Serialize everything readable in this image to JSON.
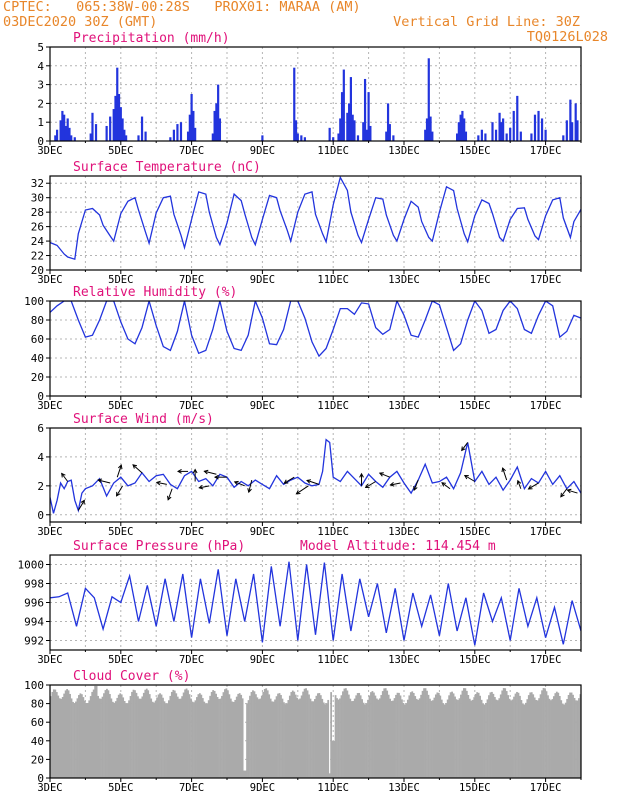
{
  "header": {
    "line1": "CPTEC:   065:38W-00:28S   PROX01: MARAA (AM)",
    "line2_left": "03DEC2020 30Z (GMT)",
    "line2_right": "Vertical Grid Line: 30Z",
    "line3_right": "TQ0126L028"
  },
  "colors": {
    "header": "#e8862a",
    "panel_title": "#e0117a",
    "series": "#2234dd",
    "cloud": "#aaaaaa",
    "grid": "#b4b4b4",
    "text": "#000000"
  },
  "x_ticks": [
    "3DEC",
    "5DEC",
    "7DEC",
    "9DEC",
    "11DEC",
    "13DEC",
    "15DEC",
    "17DEC"
  ],
  "chart_data": [
    {
      "type": "bar",
      "title": "Precipitation (mm/h)",
      "ylim": [
        0,
        5
      ],
      "yticks": [
        0,
        1,
        2,
        3,
        4,
        5
      ],
      "grid": true,
      "x": [
        3.15,
        3.2,
        3.3,
        3.35,
        3.4,
        3.45,
        3.5,
        3.55,
        3.6,
        3.7,
        4.15,
        4.2,
        4.3,
        4.6,
        4.7,
        4.8,
        4.85,
        4.9,
        4.95,
        5.0,
        5.05,
        5.1,
        5.15,
        5.5,
        5.6,
        5.7,
        6.4,
        6.5,
        6.6,
        6.7,
        6.9,
        6.95,
        7.0,
        7.05,
        7.1,
        7.6,
        7.65,
        7.7,
        7.75,
        7.8,
        9.0,
        9.9,
        9.95,
        10.0,
        10.1,
        10.2,
        10.9,
        11.0,
        11.15,
        11.2,
        11.25,
        11.3,
        11.4,
        11.45,
        11.5,
        11.55,
        11.6,
        11.7,
        11.85,
        11.9,
        11.95,
        12.0,
        12.05,
        12.5,
        12.55,
        12.6,
        12.7,
        13.6,
        13.65,
        13.7,
        13.75,
        13.8,
        14.5,
        14.55,
        14.6,
        14.65,
        14.7,
        14.75,
        15.1,
        15.2,
        15.3,
        15.5,
        15.6,
        15.7,
        15.75,
        15.8,
        15.9,
        16.0,
        16.1,
        16.2,
        16.3,
        16.6,
        16.7,
        16.8,
        16.9,
        17.0,
        17.5,
        17.6,
        17.7,
        17.75,
        17.85,
        17.9
      ],
      "values": [
        0.3,
        0.6,
        1.1,
        1.6,
        1.4,
        0.8,
        1.2,
        0.7,
        0.3,
        0.2,
        0.4,
        1.5,
        0.9,
        0.8,
        1.3,
        1.7,
        2.4,
        3.9,
        2.5,
        1.8,
        1.2,
        0.6,
        0.3,
        0.3,
        1.3,
        0.5,
        0.2,
        0.6,
        0.9,
        1.0,
        0.5,
        1.4,
        2.5,
        1.6,
        0.7,
        0.4,
        1.6,
        2.0,
        3.0,
        1.2,
        0.3,
        3.9,
        1.1,
        0.4,
        0.3,
        0.2,
        0.7,
        0.2,
        0.4,
        1.2,
        2.6,
        3.8,
        1.5,
        2.0,
        3.4,
        1.4,
        1.1,
        0.3,
        1.0,
        3.3,
        0.6,
        2.6,
        0.8,
        0.5,
        2.0,
        0.9,
        0.3,
        0.6,
        1.2,
        4.4,
        1.3,
        0.5,
        0.4,
        1.0,
        1.4,
        1.6,
        1.2,
        0.5,
        0.3,
        0.6,
        0.4,
        1.0,
        0.6,
        1.5,
        1.0,
        1.2,
        0.4,
        0.7,
        1.6,
        2.4,
        0.5,
        0.4,
        1.4,
        1.6,
        1.2,
        0.6,
        0.3,
        1.1,
        2.2,
        1.0,
        2.0,
        1.1
      ]
    },
    {
      "type": "line",
      "title": "Surface Temperature (nC)",
      "ylim": [
        20,
        33
      ],
      "yticks": [
        20,
        22,
        24,
        26,
        28,
        30,
        32
      ],
      "grid": true,
      "x": [
        3.0,
        3.2,
        3.4,
        3.5,
        3.7,
        3.8,
        4.0,
        4.2,
        4.4,
        4.5,
        4.7,
        4.8,
        5.0,
        5.2,
        5.4,
        5.5,
        5.7,
        5.8,
        6.0,
        6.2,
        6.4,
        6.5,
        6.7,
        6.8,
        7.0,
        7.2,
        7.4,
        7.5,
        7.7,
        7.8,
        8.0,
        8.2,
        8.4,
        8.5,
        8.7,
        8.8,
        9.0,
        9.2,
        9.4,
        9.5,
        9.7,
        9.8,
        10.0,
        10.2,
        10.4,
        10.5,
        10.7,
        10.8,
        11.0,
        11.2,
        11.4,
        11.5,
        11.7,
        11.8,
        12.0,
        12.2,
        12.4,
        12.5,
        12.7,
        12.8,
        13.0,
        13.2,
        13.4,
        13.5,
        13.7,
        13.8,
        14.0,
        14.2,
        14.4,
        14.5,
        14.7,
        14.8,
        15.0,
        15.2,
        15.4,
        15.5,
        15.7,
        15.8,
        16.0,
        16.2,
        16.4,
        16.5,
        16.7,
        16.8,
        17.0,
        17.2,
        17.4,
        17.5,
        17.7,
        17.8,
        18.0
      ],
      "values": [
        23.8,
        23.4,
        22.2,
        21.8,
        21.5,
        25.0,
        28.3,
        28.5,
        27.6,
        26.2,
        24.7,
        24.0,
        27.8,
        29.5,
        30.0,
        28.3,
        25.2,
        23.7,
        27.9,
        30.0,
        30.2,
        27.7,
        24.8,
        23.1,
        27.0,
        30.8,
        30.5,
        28.0,
        24.5,
        23.5,
        26.5,
        30.5,
        29.6,
        27.8,
        24.5,
        23.5,
        27.0,
        30.3,
        30.0,
        28.2,
        25.5,
        24.0,
        28.0,
        30.5,
        30.8,
        27.7,
        25.0,
        23.9,
        29.0,
        32.8,
        31.0,
        28.0,
        24.8,
        23.8,
        27.0,
        30.0,
        29.8,
        27.6,
        24.8,
        24.0,
        27.0,
        29.5,
        28.7,
        26.7,
        24.5,
        24.0,
        28.0,
        31.5,
        31.0,
        28.5,
        25.0,
        23.9,
        27.5,
        29.7,
        29.2,
        27.8,
        24.5,
        24.0,
        27.0,
        28.5,
        28.6,
        27.0,
        24.7,
        24.2,
        27.5,
        29.7,
        30.0,
        27.2,
        24.5,
        26.7,
        28.4
      ]
    },
    {
      "type": "line",
      "title": "Relative Humidity (%)",
      "ylim": [
        0,
        100
      ],
      "yticks": [
        0,
        20,
        40,
        60,
        80,
        100
      ],
      "grid": true,
      "x": [
        3.0,
        3.2,
        3.4,
        3.6,
        3.8,
        4.0,
        4.2,
        4.4,
        4.6,
        4.8,
        5.0,
        5.2,
        5.4,
        5.6,
        5.8,
        6.0,
        6.2,
        6.4,
        6.6,
        6.8,
        7.0,
        7.2,
        7.4,
        7.6,
        7.8,
        8.0,
        8.2,
        8.4,
        8.6,
        8.8,
        9.0,
        9.2,
        9.4,
        9.6,
        9.8,
        10.0,
        10.2,
        10.4,
        10.6,
        10.8,
        11.0,
        11.2,
        11.4,
        11.6,
        11.8,
        12.0,
        12.2,
        12.4,
        12.6,
        12.8,
        13.0,
        13.2,
        13.4,
        13.6,
        13.8,
        14.0,
        14.2,
        14.4,
        14.6,
        14.8,
        15.0,
        15.2,
        15.4,
        15.6,
        15.8,
        16.0,
        16.2,
        16.4,
        16.6,
        16.8,
        17.0,
        17.2,
        17.4,
        17.6,
        17.8,
        18.0
      ],
      "values": [
        88,
        95,
        100,
        100,
        80,
        62,
        64,
        80,
        100,
        100,
        78,
        60,
        55,
        72,
        100,
        74,
        52,
        48,
        68,
        100,
        64,
        45,
        48,
        70,
        100,
        68,
        50,
        48,
        64,
        100,
        82,
        55,
        54,
        70,
        100,
        100,
        82,
        57,
        42,
        50,
        70,
        92,
        92,
        86,
        98,
        97,
        72,
        65,
        70,
        100,
        85,
        64,
        62,
        80,
        100,
        96,
        72,
        48,
        55,
        80,
        100,
        90,
        66,
        70,
        90,
        100,
        92,
        70,
        66,
        85,
        100,
        95,
        62,
        68,
        85,
        82
      ]
    },
    {
      "type": "line",
      "title": "Surface Wind (m/s)",
      "ylim": [
        -0.5,
        6
      ],
      "yticks": [
        0,
        2,
        4,
        6
      ],
      "grid": true,
      "x": [
        3.0,
        3.1,
        3.2,
        3.3,
        3.4,
        3.5,
        3.6,
        3.7,
        3.8,
        3.9,
        4.0,
        4.2,
        4.4,
        4.6,
        4.8,
        5.0,
        5.2,
        5.4,
        5.6,
        5.8,
        6.0,
        6.2,
        6.4,
        6.6,
        6.8,
        7.0,
        7.2,
        7.4,
        7.6,
        7.8,
        8.0,
        8.2,
        8.4,
        8.6,
        8.8,
        9.0,
        9.2,
        9.4,
        9.6,
        9.8,
        10.0,
        10.2,
        10.4,
        10.6,
        10.7,
        10.8,
        10.9,
        11.0,
        11.2,
        11.4,
        11.6,
        11.8,
        12.0,
        12.2,
        12.4,
        12.6,
        12.8,
        13.0,
        13.2,
        13.4,
        13.6,
        13.8,
        14.0,
        14.2,
        14.4,
        14.6,
        14.8,
        15.0,
        15.2,
        15.4,
        15.6,
        15.8,
        16.0,
        16.2,
        16.4,
        16.6,
        16.8,
        17.0,
        17.2,
        17.4,
        17.6,
        17.8,
        18.0
      ],
      "values": [
        1.2,
        0.1,
        1.0,
        2.2,
        1.8,
        2.3,
        2.4,
        1.0,
        0.3,
        1.5,
        1.8,
        2.0,
        2.5,
        1.3,
        2.2,
        2.6,
        2.0,
        2.2,
        2.9,
        2.3,
        2.7,
        2.8,
        2.1,
        1.8,
        2.7,
        3.0,
        2.3,
        2.5,
        2.0,
        2.8,
        2.6,
        1.9,
        2.3,
        2.0,
        2.4,
        2.1,
        1.8,
        2.7,
        2.1,
        2.4,
        2.6,
        2.2,
        2.0,
        2.1,
        3.0,
        5.2,
        5.0,
        2.6,
        2.3,
        3.0,
        2.5,
        2.0,
        2.8,
        2.3,
        1.9,
        2.6,
        3.0,
        2.2,
        1.5,
        2.4,
        3.5,
        2.2,
        2.3,
        2.6,
        1.8,
        2.9,
        5.0,
        2.3,
        3.0,
        2.1,
        2.6,
        1.7,
        2.4,
        3.3,
        1.8,
        2.5,
        2.2,
        3.0,
        2.1,
        2.7,
        1.8,
        2.3,
        1.5
      ],
      "vectors": [
        {
          "x": 3.5,
          "dx": -6,
          "dy": -8
        },
        {
          "x": 3.8,
          "dx": 6,
          "dy": -10
        },
        {
          "x": 4.7,
          "dx": -12,
          "dy": -3
        },
        {
          "x": 4.9,
          "dx": 4,
          "dy": -12
        },
        {
          "x": 5.05,
          "dx": -6,
          "dy": 10
        },
        {
          "x": 5.6,
          "dx": -9,
          "dy": -8
        },
        {
          "x": 6.3,
          "dx": -10,
          "dy": -2
        },
        {
          "x": 6.45,
          "dx": -4,
          "dy": 11
        },
        {
          "x": 6.9,
          "dx": -10,
          "dy": 0
        },
        {
          "x": 7.1,
          "dx": 0,
          "dy": -12
        },
        {
          "x": 7.5,
          "dx": -10,
          "dy": 2
        },
        {
          "x": 7.7,
          "dx": -12,
          "dy": -3
        },
        {
          "x": 8.0,
          "dx": -12,
          "dy": 0
        },
        {
          "x": 8.5,
          "dx": -10,
          "dy": -4
        },
        {
          "x": 8.7,
          "dx": -3,
          "dy": 12
        },
        {
          "x": 9.9,
          "dx": -10,
          "dy": 6
        },
        {
          "x": 10.3,
          "dx": -12,
          "dy": 8
        },
        {
          "x": 10.6,
          "dx": -12,
          "dy": -4
        },
        {
          "x": 11.8,
          "dx": 0,
          "dy": -12
        },
        {
          "x": 12.2,
          "dx": -10,
          "dy": 6
        },
        {
          "x": 12.6,
          "dx": -10,
          "dy": -4
        },
        {
          "x": 12.9,
          "dx": -10,
          "dy": 2
        },
        {
          "x": 13.4,
          "dx": -4,
          "dy": 10
        },
        {
          "x": 14.3,
          "dx": -8,
          "dy": -6
        },
        {
          "x": 14.8,
          "dx": -6,
          "dy": 8
        },
        {
          "x": 15.0,
          "dx": -10,
          "dy": -6
        },
        {
          "x": 15.9,
          "dx": -4,
          "dy": -12
        },
        {
          "x": 16.3,
          "dx": -3,
          "dy": -8
        },
        {
          "x": 16.8,
          "dx": -10,
          "dy": 6
        },
        {
          "x": 17.6,
          "dx": -6,
          "dy": 8
        },
        {
          "x": 17.9,
          "dx": -10,
          "dy": -3
        }
      ]
    },
    {
      "type": "line",
      "title": "Surface Pressure (hPa)",
      "annotation": "Model Altitude: 114.454 m",
      "ylim": [
        991,
        1001
      ],
      "yticks": [
        992,
        994,
        996,
        998,
        1000
      ],
      "grid": true,
      "x": [
        3.0,
        3.25,
        3.5,
        3.75,
        4.0,
        4.25,
        4.5,
        4.75,
        5.0,
        5.25,
        5.5,
        5.75,
        6.0,
        6.25,
        6.5,
        6.75,
        7.0,
        7.25,
        7.5,
        7.75,
        8.0,
        8.25,
        8.5,
        8.75,
        9.0,
        9.25,
        9.5,
        9.75,
        10.0,
        10.25,
        10.5,
        10.75,
        11.0,
        11.25,
        11.5,
        11.75,
        12.0,
        12.25,
        12.5,
        12.75,
        13.0,
        13.25,
        13.5,
        13.75,
        14.0,
        14.25,
        14.5,
        14.75,
        15.0,
        15.25,
        15.5,
        15.75,
        16.0,
        16.25,
        16.5,
        16.75,
        17.0,
        17.25,
        17.5,
        17.75,
        18.0
      ],
      "values": [
        996.5,
        996.6,
        997.0,
        993.5,
        997.5,
        996.5,
        993.2,
        996.6,
        996.0,
        998.8,
        994.0,
        997.8,
        993.5,
        998.5,
        994.0,
        999.0,
        992.3,
        998.5,
        993.8,
        999.5,
        992.5,
        998.5,
        994.0,
        999.0,
        991.8,
        999.8,
        993.5,
        1000.3,
        992.0,
        1000.0,
        992.6,
        1000.2,
        992.0,
        999.0,
        993.0,
        998.5,
        994.5,
        998.0,
        992.8,
        997.5,
        992.0,
        997.0,
        993.5,
        996.8,
        992.5,
        998.0,
        993.0,
        996.5,
        991.5,
        997.0,
        994.0,
        996.5,
        992.0,
        997.5,
        993.5,
        996.5,
        992.3,
        995.5,
        991.6,
        996.2,
        993.0
      ]
    },
    {
      "type": "bar",
      "title": "Cloud Cover (%)",
      "ylim": [
        0,
        100
      ],
      "yticks": [
        0,
        20,
        40,
        60,
        80,
        100
      ],
      "grid": true,
      "values_note": "dense hourly bars, mostly 85-96% with drops near 8.5DEC and 10.9DEC"
    }
  ]
}
